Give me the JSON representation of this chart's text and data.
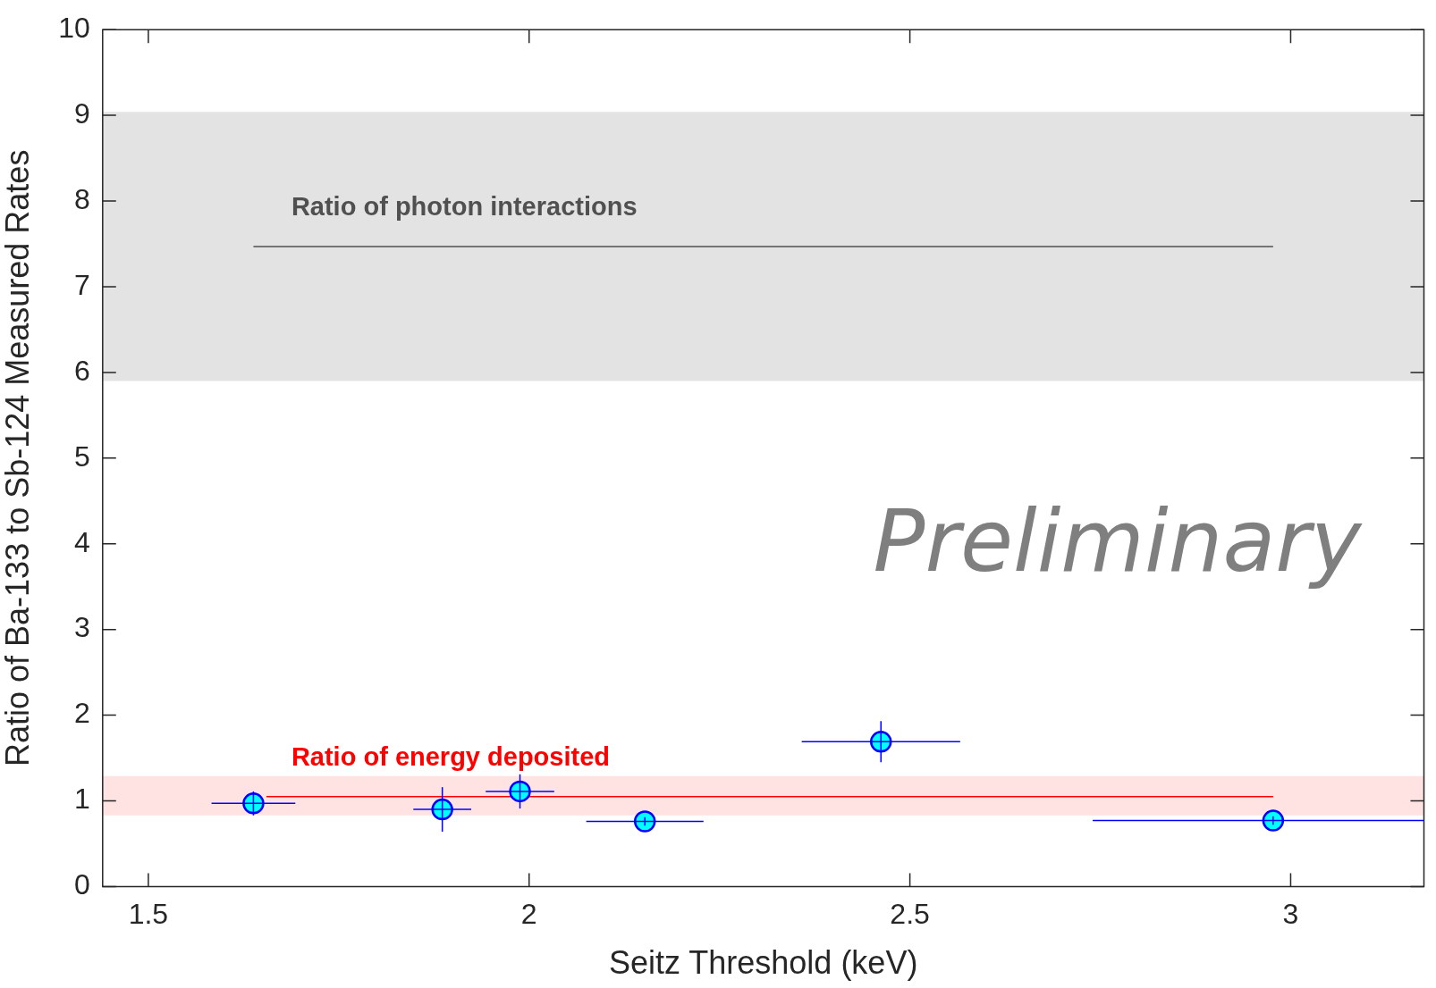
{
  "chart_data": {
    "type": "scatter",
    "xlabel": "Seitz Threshold (keV)",
    "ylabel": "Ratio of Ba-133 to Sb-124 Measured Rates",
    "xlim": [
      1.44,
      3.175
    ],
    "xticks": [
      1.5,
      2,
      2.5,
      3
    ],
    "ylim": [
      0,
      10
    ],
    "yticks": [
      0,
      1,
      2,
      3,
      4,
      5,
      6,
      7,
      8,
      9,
      10
    ],
    "grid": false,
    "legend": false,
    "series": [
      {
        "marker": "circle",
        "color": "#00ffff",
        "x": [
          1.638,
          1.886,
          1.988,
          2.152,
          2.462,
          2.977
        ],
        "values": [
          0.97,
          0.9,
          1.11,
          0.76,
          1.69,
          0.77
        ],
        "errors": [
          0.14,
          0.26,
          0.2,
          0.05,
          0.24,
          0.05
        ],
        "xerrors": [
          0.055,
          0.038,
          0.045,
          0.077,
          0.104,
          [
            2.74,
            3.175
          ]
        ]
      },
      {
        "type": "line",
        "marker": "none",
        "name": "Ratio of photon interactions",
        "color": "#505050",
        "x": [
          1.638,
          2.977
        ],
        "values": [
          7.47,
          7.47
        ]
      },
      {
        "type": "line",
        "marker": "none",
        "name": "Ratio of energy deposited",
        "color": "#ff0000",
        "x": [
          1.655,
          2.977
        ],
        "values": [
          1.05,
          1.05
        ]
      }
    ],
    "bands": [
      {
        "axis": "y",
        "from": 5.9,
        "to": 9.04,
        "color": "#e3e3e3"
      },
      {
        "axis": "y",
        "from": 0.83,
        "to": 1.29,
        "color": "#ffe3e3"
      }
    ],
    "annotations": [
      "Preliminary"
    ]
  }
}
